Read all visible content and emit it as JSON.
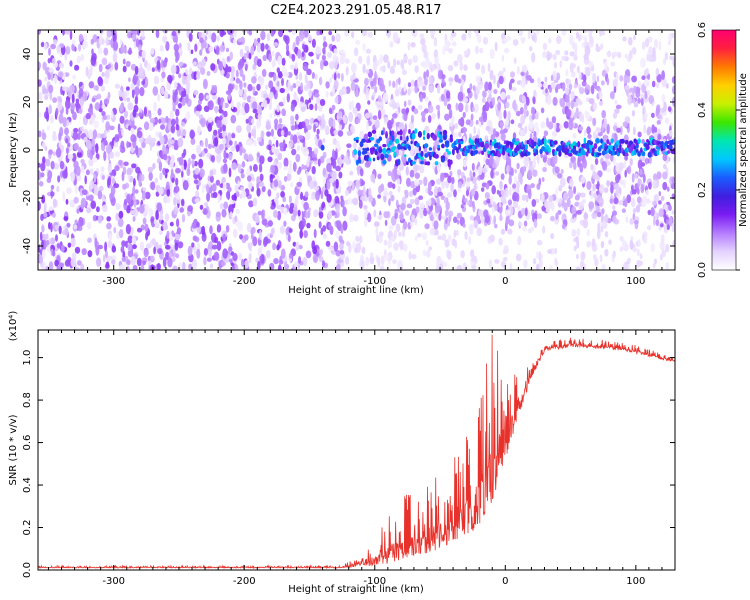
{
  "figure": {
    "title": "C2E4.2023.291.05.48.R17"
  },
  "colors": {
    "snr_line": "#e8312a",
    "colormap": [
      "#ffffff",
      "#e4d2ff",
      "#b47cff",
      "#7b1cf2",
      "#3f1ee0",
      "#1a5cff",
      "#00c8ff",
      "#00e7b0",
      "#3ce600",
      "#c8f000",
      "#ffd000",
      "#ff7a00",
      "#ff2040",
      "#ff0070"
    ]
  },
  "chart_data": [
    {
      "type": "heatmap",
      "title": "C2E4.2023.291.05.48.R17",
      "xlabel": "Height of straight line (km)",
      "ylabel": "Frequency (Hz)",
      "xlim": [
        -358,
        130
      ],
      "ylim": [
        -50,
        50
      ],
      "xticks": [
        -300,
        -200,
        -100,
        0,
        100
      ],
      "yticks": [
        -40,
        -20,
        0,
        20,
        40
      ],
      "colorbar": {
        "label": "Normalized spectral amplitude",
        "range": [
          0.0,
          0.6
        ],
        "ticks": [
          "0.0",
          "0.2",
          "0.4",
          "0.6"
        ]
      },
      "description_points": {
        "noise_boundary_x": -125,
        "signal_band_center_hz": 1,
        "signal_start_x": -115,
        "signal_peak_amplitude": 0.3
      }
    },
    {
      "type": "line",
      "xlabel": "Height of straight line (km)",
      "ylabel": "SNR (10 * v/v)",
      "y_scale_note": "(x10⁴)",
      "xlim": [
        -358,
        130
      ],
      "ylim": [
        0.0,
        1.13
      ],
      "xticks": [
        -300,
        -200,
        -100,
        0,
        100
      ],
      "yticks": [
        "0.0",
        "0.2",
        "0.4",
        "0.6",
        "0.8",
        "1.0"
      ],
      "envelope": {
        "x": [
          -358,
          -125,
          -115,
          -100,
          -90,
          -80,
          -60,
          -40,
          -25,
          -15,
          -10,
          -5,
          0,
          10,
          20,
          30,
          50,
          80,
          100,
          120,
          130
        ],
        "y_low": [
          0.01,
          0.01,
          0.015,
          0.02,
          0.03,
          0.05,
          0.08,
          0.12,
          0.18,
          0.25,
          0.32,
          0.42,
          0.5,
          0.72,
          0.9,
          1.03,
          1.05,
          1.04,
          1.02,
          0.99,
          0.98
        ],
        "y_high": [
          0.02,
          0.02,
          0.06,
          0.13,
          0.28,
          0.35,
          0.4,
          0.52,
          0.75,
          0.98,
          1.13,
          1.05,
          0.98,
          0.98,
          1.02,
          1.07,
          1.1,
          1.08,
          1.06,
          1.02,
          1.0
        ]
      }
    }
  ]
}
